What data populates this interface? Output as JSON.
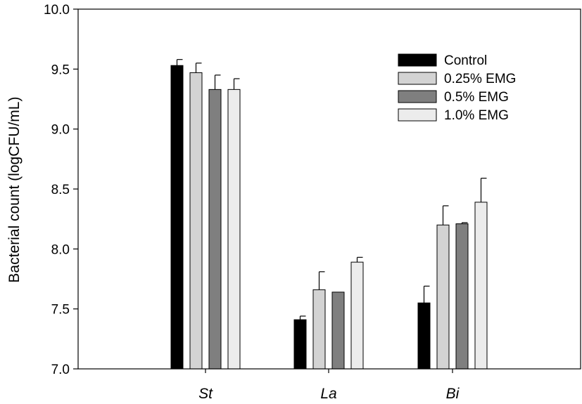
{
  "chart_data": {
    "type": "bar",
    "title": "",
    "xlabel": "",
    "ylabel": "Bacterial count (logCFU/mL)",
    "ylim": [
      7.0,
      10.0
    ],
    "yticks": [
      "7.0",
      "7.5",
      "8.0",
      "8.5",
      "9.0",
      "9.5",
      "10.0"
    ],
    "categories": [
      "St",
      "La",
      "Bi"
    ],
    "series": [
      {
        "name": "Control",
        "color": "#000000",
        "values": [
          9.53,
          7.41,
          7.55
        ],
        "errors": [
          0.05,
          0.03,
          0.14
        ]
      },
      {
        "name": "0.25% EMG",
        "color": "#d3d3d3",
        "values": [
          9.47,
          7.66,
          8.2
        ],
        "errors": [
          0.08,
          0.15,
          0.16
        ]
      },
      {
        "name": "0.5% EMG",
        "color": "#7f7f7f",
        "values": [
          9.33,
          7.64,
          8.21
        ],
        "errors": [
          0.12,
          0.0,
          0.01
        ]
      },
      {
        "name": "1.0% EMG",
        "color": "#ececec",
        "values": [
          9.33,
          7.89,
          8.39
        ],
        "errors": [
          0.09,
          0.04,
          0.2
        ]
      }
    ],
    "legend_position": "top-right",
    "grid": false
  }
}
